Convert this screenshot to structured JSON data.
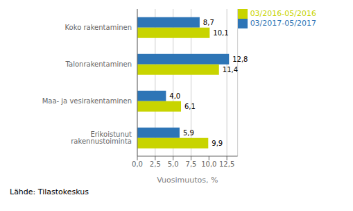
{
  "chart_data": {
    "type": "bar",
    "orientation": "horizontal",
    "categories": [
      "Erikoistunut rakennustoiminta",
      "Maa- ja vesirakentaminen",
      "Talonrakentaminen",
      "Koko rakentaminen"
    ],
    "series": [
      {
        "name": "03/2017-05/2017",
        "color": "#2E75B6",
        "values": [
          5.9,
          4.0,
          12.8,
          8.7
        ],
        "value_labels": [
          "5,9",
          "4,0",
          "12,8",
          "8,7"
        ]
      },
      {
        "name": "03/2016-05/2016",
        "color": "#C8D400",
        "values": [
          9.9,
          6.1,
          11.4,
          10.1
        ],
        "value_labels": [
          "9,9",
          "6,1",
          "11,4",
          "10,1"
        ]
      }
    ],
    "xlabel": "Vuosimuutos, %",
    "xlim": [
      0,
      14
    ],
    "xticks": [
      {
        "value": 0.0,
        "label": "0,0"
      },
      {
        "value": 2.5,
        "label": "2,5"
      },
      {
        "value": 5.0,
        "label": "5,0"
      },
      {
        "value": 7.5,
        "label": "7,5"
      },
      {
        "value": 10.0,
        "label": "10,0"
      },
      {
        "value": 12.5,
        "label": "12,5"
      }
    ],
    "grid": true,
    "legend": "upper right",
    "data_labels": true,
    "footnote": "Lähde: Tilastokeskus"
  }
}
